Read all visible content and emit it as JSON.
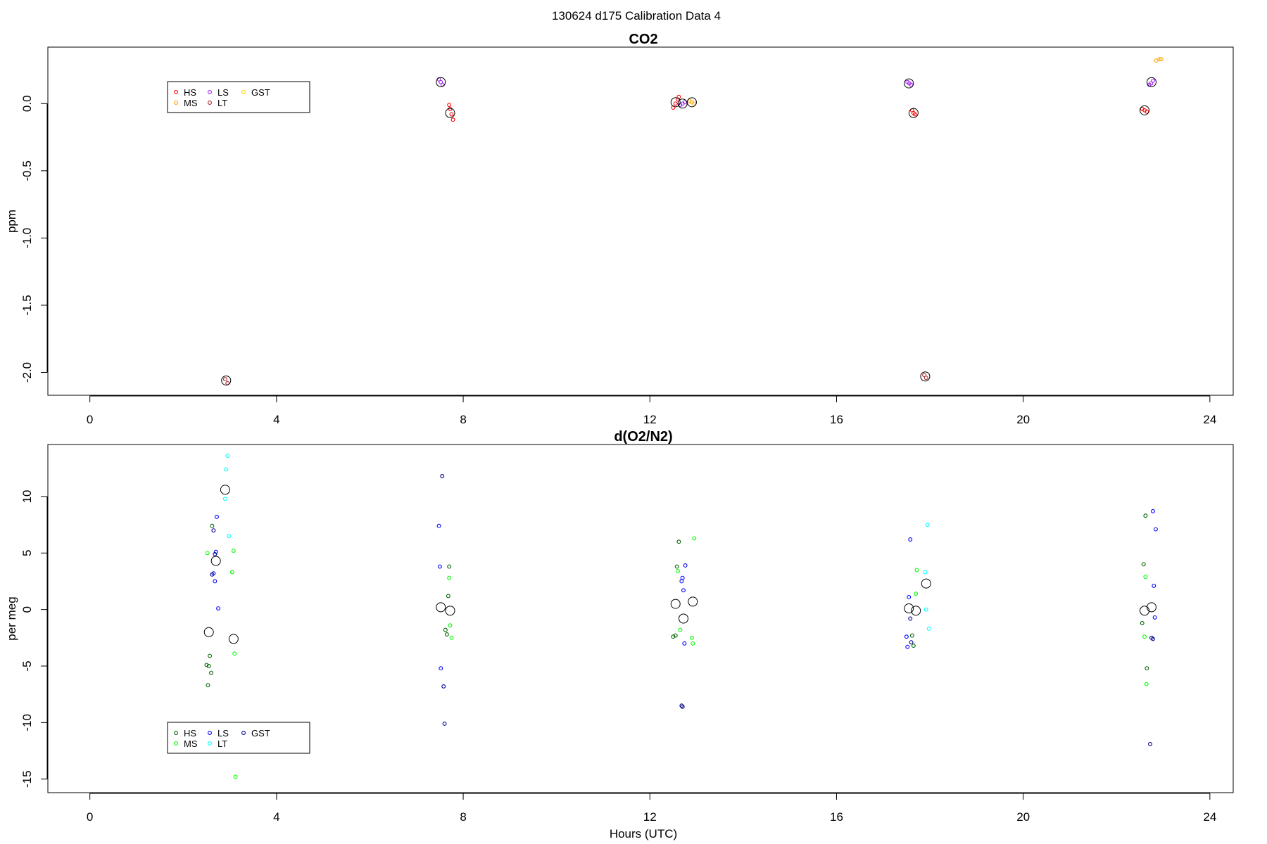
{
  "figure": {
    "title": "130624   d175   Calibration Data 4",
    "xlabel": "Hours (UTC)"
  },
  "chart_data": [
    {
      "type": "scatter",
      "title": "CO2",
      "ylabel": "ppm",
      "xlabel": "",
      "xlim": [
        -0.9,
        24.5
      ],
      "ylim": [
        -2.17,
        0.42
      ],
      "xticks": [
        0,
        4,
        8,
        12,
        16,
        20,
        24
      ],
      "yticks": [
        0.0,
        -0.5,
        -1.0,
        -1.5,
        -2.0
      ],
      "ytick_labels": [
        "0.0",
        "-0.5",
        "-1.0",
        "-1.5",
        "-2.0"
      ],
      "grid": false,
      "legend": {
        "placement": "top-left",
        "entries": [
          {
            "label": "HS",
            "color": "#ff0000"
          },
          {
            "label": "MS",
            "color": "#ffa500"
          },
          {
            "label": "LS",
            "color": "#a020f0"
          },
          {
            "label": "LT",
            "color": "#b22222"
          },
          {
            "label": "GST",
            "color": "#ffd700"
          }
        ]
      },
      "series": [
        {
          "name": "HS",
          "color": "#ff0000",
          "x": [
            7.7,
            7.72,
            7.75,
            7.78,
            12.5,
            12.55,
            12.6,
            12.62,
            17.62,
            17.65,
            17.68,
            22.55,
            22.6,
            22.65
          ],
          "y": [
            -0.01,
            -0.04,
            -0.08,
            -0.12,
            -0.03,
            0.0,
            0.03,
            0.05,
            -0.05,
            -0.07,
            -0.08,
            -0.04,
            -0.05,
            -0.06
          ]
        },
        {
          "name": "MS",
          "color": "#ffa500",
          "x": [
            12.85,
            12.9,
            12.95,
            22.85,
            22.92,
            22.96
          ],
          "y": [
            0.02,
            0.01,
            0.0,
            0.32,
            0.33,
            0.33
          ]
        },
        {
          "name": "LS",
          "color": "#a020f0",
          "x": [
            7.48,
            7.52,
            7.56,
            12.65,
            12.7,
            12.75,
            17.52,
            17.56,
            17.6,
            22.7,
            22.74,
            22.78
          ],
          "y": [
            0.18,
            0.16,
            0.14,
            -0.01,
            0.0,
            0.01,
            0.16,
            0.15,
            0.14,
            0.14,
            0.15,
            0.17
          ]
        },
        {
          "name": "LT",
          "color": "#b22222",
          "x": [
            2.9,
            2.95,
            17.88,
            17.92
          ],
          "y": [
            -2.05,
            -2.08,
            -2.02,
            -2.04
          ]
        },
        {
          "name": "GST",
          "color": "#ffd700",
          "x": [],
          "y": []
        }
      ],
      "means": {
        "x": [
          2.92,
          7.52,
          7.72,
          12.55,
          12.7,
          12.9,
          17.55,
          17.65,
          17.9,
          22.6,
          22.75
        ],
        "y": [
          -2.06,
          0.16,
          -0.07,
          0.01,
          0.0,
          0.01,
          0.15,
          -0.07,
          -2.03,
          -0.05,
          0.16
        ]
      }
    },
    {
      "type": "scatter",
      "title": "d(O2/N2)",
      "ylabel": "per meg",
      "xlabel": "Hours (UTC)",
      "xlim": [
        -0.9,
        24.5
      ],
      "ylim": [
        -16.2,
        14.6
      ],
      "xticks": [
        0,
        4,
        8,
        12,
        16,
        20,
        24
      ],
      "yticks": [
        10,
        5,
        0,
        -5,
        -10,
        -15
      ],
      "ytick_labels": [
        "10",
        "5",
        "0",
        "-5",
        "-10",
        "-15"
      ],
      "grid": false,
      "legend": {
        "placement": "bottom-left",
        "entries": [
          {
            "label": "HS",
            "color": "#006400"
          },
          {
            "label": "MS",
            "color": "#00ff00"
          },
          {
            "label": "LS",
            "color": "#0000ff"
          },
          {
            "label": "LT",
            "color": "#00ffff"
          },
          {
            "label": "GST",
            "color": "#00008b"
          }
        ]
      },
      "series": [
        {
          "name": "HS",
          "color": "#006400",
          "x": [
            2.5,
            2.53,
            2.55,
            2.57,
            2.6,
            2.62,
            7.62,
            7.65,
            7.68,
            7.7,
            12.5,
            12.55,
            12.58,
            12.62,
            17.62,
            17.65,
            22.55,
            22.58,
            22.62,
            22.65
          ],
          "y": [
            -4.9,
            -6.7,
            -5.0,
            -4.1,
            -5.6,
            7.4,
            -1.8,
            -2.2,
            1.2,
            3.8,
            -2.4,
            -2.3,
            3.8,
            6.0,
            -2.3,
            -3.2,
            -1.2,
            4.0,
            8.3,
            -5.2
          ]
        },
        {
          "name": "MS",
          "color": "#00ff00",
          "x": [
            2.52,
            3.05,
            3.08,
            3.1,
            3.12,
            7.7,
            7.72,
            7.75,
            12.6,
            12.65,
            12.9,
            12.92,
            12.95,
            17.7,
            17.72,
            22.6,
            22.62,
            22.64
          ],
          "y": [
            5.0,
            3.3,
            5.2,
            -3.9,
            -14.8,
            2.8,
            -1.4,
            -2.5,
            3.4,
            -1.8,
            -2.5,
            -3.0,
            6.3,
            1.4,
            3.5,
            -2.4,
            2.9,
            -6.6
          ]
        },
        {
          "name": "LS",
          "color": "#0000ff",
          "x": [
            2.65,
            2.68,
            2.7,
            2.72,
            2.75,
            7.48,
            7.5,
            7.52,
            12.68,
            12.7,
            12.72,
            12.74,
            12.76,
            17.5,
            17.52,
            17.55,
            17.58,
            22.78,
            22.8,
            22.82,
            22.84
          ],
          "y": [
            3.2,
            2.5,
            5.1,
            8.2,
            0.1,
            7.4,
            3.8,
            -5.2,
            2.5,
            2.8,
            1.7,
            -3.0,
            3.9,
            -2.4,
            -3.3,
            1.1,
            6.2,
            8.7,
            2.1,
            -0.7,
            7.1
          ]
        },
        {
          "name": "LT",
          "color": "#00ffff",
          "x": [
            2.9,
            2.92,
            2.95,
            2.98,
            17.9,
            17.92,
            17.95,
            17.98
          ],
          "y": [
            9.8,
            12.4,
            13.6,
            6.5,
            3.3,
            0.0,
            7.5,
            -1.7
          ]
        },
        {
          "name": "GST",
          "color": "#00008b",
          "x": [
            2.62,
            2.65,
            2.68,
            7.55,
            7.58,
            7.6,
            12.68,
            12.7,
            17.58,
            17.6,
            22.72,
            22.75,
            22.78
          ],
          "y": [
            3.1,
            7.0,
            4.9,
            11.8,
            -6.8,
            -10.1,
            -8.5,
            -8.6,
            -0.8,
            -2.9,
            -11.9,
            -2.5,
            -2.6
          ]
        }
      ],
      "means": {
        "x": [
          2.55,
          2.7,
          2.9,
          3.08,
          7.52,
          7.72,
          12.55,
          12.72,
          12.92,
          17.55,
          17.7,
          17.92,
          22.6,
          22.75
        ],
        "y": [
          -2.0,
          4.3,
          10.6,
          -2.6,
          0.2,
          -0.1,
          0.5,
          -0.8,
          0.7,
          0.1,
          -0.1,
          2.3,
          -0.1,
          0.2
        ]
      }
    }
  ]
}
